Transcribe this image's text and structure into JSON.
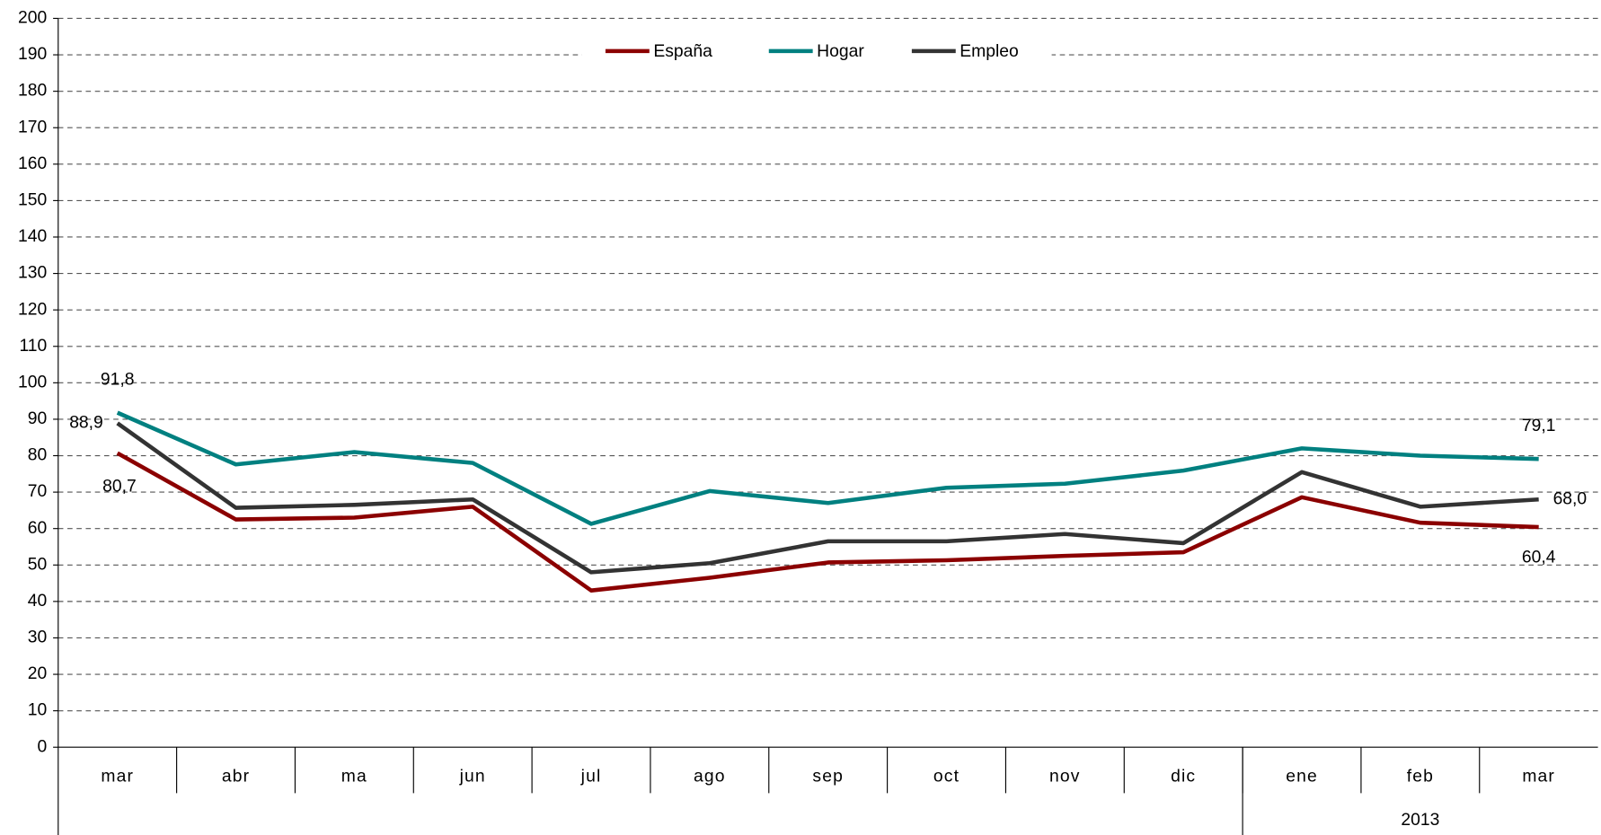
{
  "chart_data": {
    "type": "line",
    "categories": [
      "mar",
      "abr",
      "ma",
      "jun",
      "jul",
      "ago",
      "sep",
      "oct",
      "nov",
      "dic",
      "ene",
      "feb",
      "mar"
    ],
    "x_group": {
      "label": "2013",
      "from": 10,
      "to": 12
    },
    "series": [
      {
        "name": "España",
        "color": "#8b0000",
        "values": [
          80.7,
          62.5,
          63,
          66,
          43,
          46.5,
          50.7,
          51.3,
          52.5,
          53.5,
          68.6,
          61.6,
          60.4
        ],
        "value_labels": [
          "80,7",
          null,
          null,
          null,
          null,
          null,
          null,
          null,
          null,
          null,
          null,
          null,
          "60,4"
        ]
      },
      {
        "name": "Hogar",
        "color": "#008080",
        "values": [
          91.8,
          77.6,
          81,
          78,
          61.3,
          70.3,
          67,
          71.2,
          72.3,
          75.9,
          82,
          80,
          79.1
        ],
        "value_labels": [
          "91,8",
          null,
          null,
          null,
          null,
          null,
          null,
          null,
          null,
          null,
          null,
          null,
          "79,1"
        ]
      },
      {
        "name": "Empleo",
        "color": "#333333",
        "values": [
          88.9,
          65.7,
          66.5,
          68,
          48,
          50.5,
          56.5,
          56.5,
          58.5,
          56,
          75.5,
          66,
          68.0
        ],
        "value_labels": [
          "88,9",
          null,
          null,
          null,
          null,
          null,
          null,
          null,
          null,
          null,
          null,
          null,
          "68,0"
        ]
      }
    ],
    "ylim": [
      0,
      200
    ],
    "yticks": [
      0,
      10,
      20,
      30,
      40,
      50,
      60,
      70,
      80,
      90,
      100,
      110,
      120,
      130,
      140,
      150,
      160,
      170,
      180,
      190,
      200
    ],
    "grid": true,
    "legend": "top"
  }
}
